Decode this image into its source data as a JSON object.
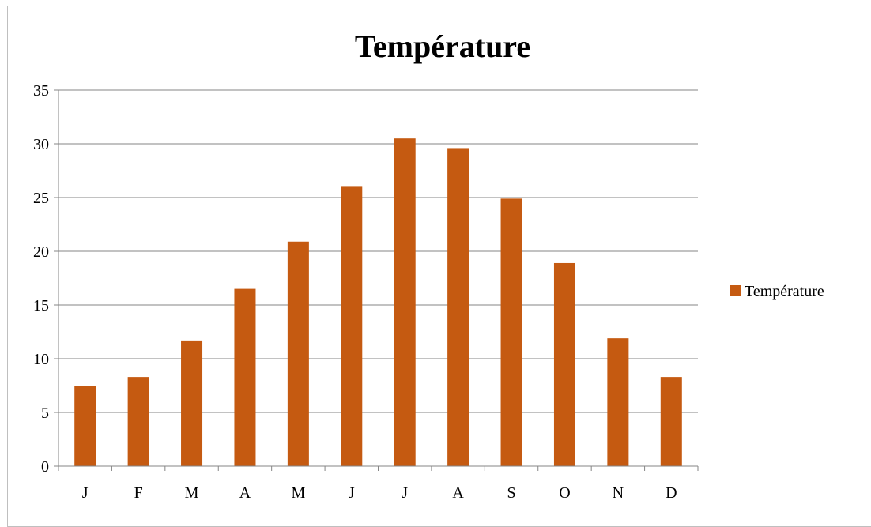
{
  "chart_data": {
    "type": "bar",
    "title": "Température",
    "categories": [
      "J",
      "F",
      "M",
      "A",
      "M",
      "J",
      "J",
      "A",
      "S",
      "O",
      "N",
      "D"
    ],
    "series": [
      {
        "name": "Température",
        "color": "#c55a11",
        "values": [
          7.5,
          8.3,
          11.7,
          16.5,
          20.9,
          26.0,
          30.5,
          29.6,
          24.9,
          18.9,
          11.9,
          8.3
        ]
      }
    ],
    "ylim": [
      0,
      35
    ],
    "yticks": [
      0,
      5,
      10,
      15,
      20,
      25,
      30,
      35
    ],
    "grid": true,
    "legend": "right",
    "colors": {
      "bar": "#c55a11",
      "grid": "#868686",
      "axis": "#868686"
    }
  }
}
